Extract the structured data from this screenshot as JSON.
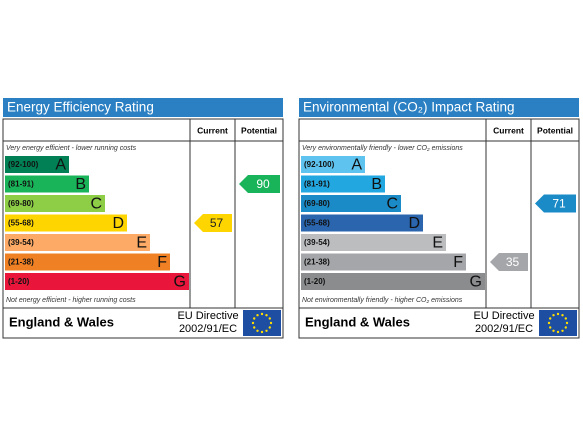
{
  "panels": [
    {
      "title": "Energy Efficiency Rating",
      "columns": [
        "Current",
        "Potential"
      ],
      "top_note": "Very energy efficient - lower running costs",
      "bottom_note": "Not energy efficient - higher running costs",
      "bands": [
        {
          "range": "(92-100)",
          "letter": "A",
          "color": "#008054"
        },
        {
          "range": "(81-91)",
          "letter": "B",
          "color": "#19b459"
        },
        {
          "range": "(69-80)",
          "letter": "C",
          "color": "#8dce46"
        },
        {
          "range": "(55-68)",
          "letter": "D",
          "color": "#ffd500"
        },
        {
          "range": "(39-54)",
          "letter": "E",
          "color": "#fcaa65"
        },
        {
          "range": "(21-38)",
          "letter": "F",
          "color": "#ef8023"
        },
        {
          "range": "(1-20)",
          "letter": "G",
          "color": "#e9153b"
        }
      ],
      "current": 57,
      "potential": 90,
      "region": "England & Wales",
      "directive": [
        "EU Directive",
        "2002/91/EC"
      ]
    },
    {
      "title": "Environmental (CO₂) Impact Rating",
      "columns": [
        "Current",
        "Potential"
      ],
      "top_note": "Very environmentally friendly - lower CO₂ emissions",
      "bottom_note": "Not environmentally friendly - higher CO₂ emissions",
      "bands": [
        {
          "range": "(92-100)",
          "letter": "A",
          "color": "#5ec3ee"
        },
        {
          "range": "(81-91)",
          "letter": "B",
          "color": "#22a7e0"
        },
        {
          "range": "(69-80)",
          "letter": "C",
          "color": "#1b8bc8"
        },
        {
          "range": "(55-68)",
          "letter": "D",
          "color": "#2a65ad"
        },
        {
          "range": "(39-54)",
          "letter": "E",
          "color": "#bbbdbf"
        },
        {
          "range": "(21-38)",
          "letter": "F",
          "color": "#a4a6a9"
        },
        {
          "range": "(1-20)",
          "letter": "G",
          "color": "#8a8c8e"
        }
      ],
      "current": 35,
      "potential": 71,
      "region": "England & Wales",
      "directive": [
        "EU Directive",
        "2002/91/EC"
      ]
    }
  ]
}
